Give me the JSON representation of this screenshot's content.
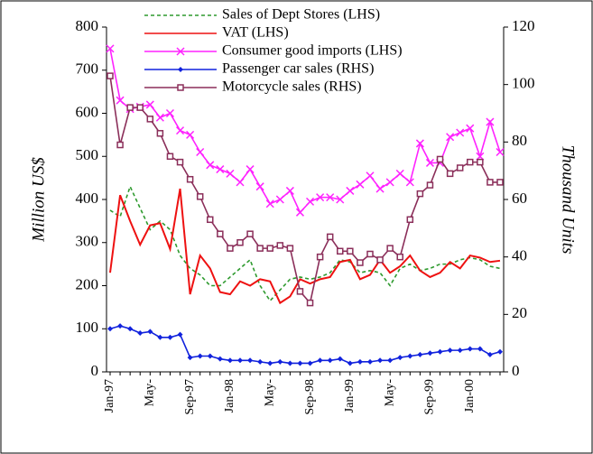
{
  "chart_data": {
    "type": "line",
    "categories": [
      "Jan-97",
      null,
      null,
      null,
      "May-",
      null,
      null,
      null,
      "Sep-97",
      null,
      null,
      null,
      "Jan-98",
      null,
      null,
      null,
      "May-",
      null,
      null,
      null,
      "Sep-98",
      null,
      null,
      null,
      "Jan-99",
      null,
      null,
      null,
      "May-",
      null,
      null,
      null,
      "Sep-99",
      null,
      null,
      null,
      "Jan-00",
      null,
      null,
      null
    ],
    "series": [
      {
        "name": "Sales of Dept Stores  (LHS)",
        "color": "#2e9a2e",
        "style": "dashed",
        "marker": "none",
        "values": [
          375,
          360,
          430,
          380,
          330,
          350,
          330,
          270,
          240,
          225,
          200,
          200,
          220,
          240,
          260,
          200,
          165,
          190,
          215,
          220,
          215,
          220,
          230,
          260,
          255,
          230,
          235,
          230,
          200,
          240,
          250,
          235,
          240,
          250,
          250,
          260,
          265,
          260,
          245,
          240
        ]
      },
      {
        "name": "VAT (LHS)",
        "color": "#ee1111",
        "style": "solid",
        "marker": "none",
        "values": [
          230,
          410,
          350,
          295,
          340,
          345,
          285,
          425,
          180,
          270,
          240,
          185,
          180,
          210,
          200,
          215,
          210,
          160,
          175,
          215,
          205,
          215,
          220,
          255,
          260,
          215,
          225,
          260,
          230,
          245,
          270,
          235,
          220,
          230,
          255,
          240,
          270,
          265,
          255,
          258
        ]
      },
      {
        "name": "Consumer good imports (LHS)",
        "color": "#ff22ff",
        "style": "solid",
        "marker": "x",
        "values": [
          750,
          630,
          610,
          615,
          620,
          590,
          600,
          560,
          550,
          510,
          480,
          470,
          460,
          440,
          470,
          430,
          390,
          400,
          420,
          370,
          395,
          405,
          405,
          400,
          420,
          435,
          455,
          425,
          440,
          460,
          440,
          530,
          485,
          485,
          545,
          555,
          565,
          500,
          580,
          510
        ]
      },
      {
        "name": "Passenger car sales (RHS)",
        "color": "#1122dd",
        "style": "solid",
        "marker": "diamond",
        "axis": "y2",
        "values": [
          15,
          16,
          15,
          13.5,
          14,
          12,
          12,
          13,
          5,
          5.5,
          5.5,
          4.5,
          4,
          4,
          4,
          3.5,
          3,
          3.5,
          3,
          3,
          3,
          4,
          4,
          4.5,
          3,
          3.5,
          3.5,
          4,
          4,
          5,
          5.5,
          6,
          6.5,
          7,
          7.5,
          7.5,
          8,
          8,
          6,
          7
        ]
      },
      {
        "name": "Motorcycle sales (RHS)",
        "color": "#8b2f5a",
        "style": "solid",
        "marker": "square",
        "axis": "y2",
        "values": [
          103,
          79,
          92,
          92,
          88,
          83,
          75,
          73,
          67,
          61,
          53,
          48,
          43,
          45,
          48,
          43,
          43,
          44,
          43,
          28,
          24,
          40,
          47,
          42,
          42,
          38,
          41,
          39,
          43,
          40,
          53,
          62,
          65,
          74,
          69,
          71,
          73,
          73,
          66,
          66
        ]
      }
    ],
    "ylabel": "Million US$",
    "y2label": "Thousand Units",
    "ylim": [
      0,
      800
    ],
    "yticks": [
      0,
      100,
      200,
      300,
      400,
      500,
      600,
      700,
      800
    ],
    "y2lim": [
      0,
      120
    ],
    "y2ticks": [
      0,
      20,
      40,
      60,
      80,
      100,
      120
    ]
  }
}
